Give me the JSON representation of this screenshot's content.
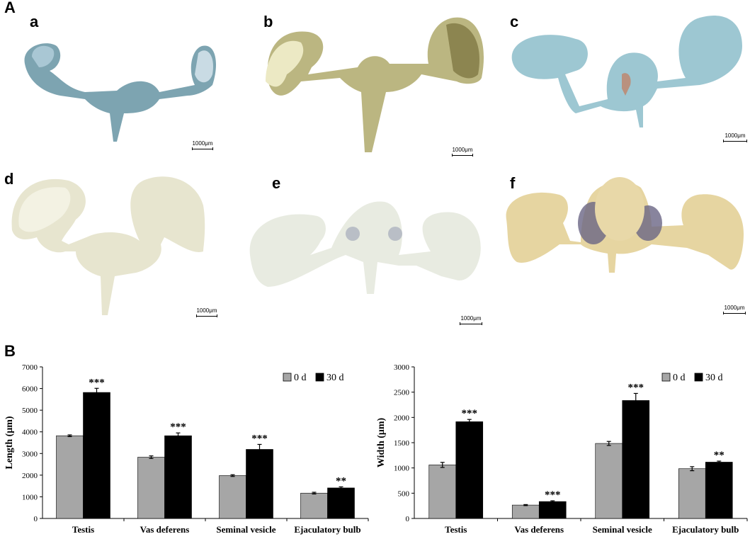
{
  "panel_labels": {
    "A": "A",
    "B": "B"
  },
  "photos": [
    {
      "letter": "a",
      "scale_label": "1000μm",
      "tint": "#7fa8b8"
    },
    {
      "letter": "b",
      "scale_label": "1000μm",
      "tint": "#c9c48e"
    },
    {
      "letter": "c",
      "scale_label": "1000μm",
      "tint": "#a9cfd8"
    },
    {
      "letter": "d",
      "scale_label": "1000μm",
      "tint": "#e8e6cf"
    },
    {
      "letter": "e",
      "scale_label": "1000μm",
      "tint": "#eceee4"
    },
    {
      "letter": "f",
      "scale_label": "1000μm",
      "tint": "#ead8a6"
    }
  ],
  "colors": {
    "day0": "#a6a6a6",
    "day30": "#000000"
  },
  "chart_data": [
    {
      "type": "bar",
      "categories": [
        "Testis",
        "Vas deferens",
        "Seminal vesicle",
        "Ejaculatory bulb"
      ],
      "series": [
        {
          "name": "0 d",
          "values": [
            3820,
            2830,
            1980,
            1170
          ],
          "errors": [
            40,
            60,
            40,
            40
          ]
        },
        {
          "name": "30 d",
          "values": [
            5820,
            3820,
            3190,
            1410
          ],
          "errors": [
            190,
            130,
            230,
            50
          ]
        }
      ],
      "significance": [
        "***",
        "***",
        "***",
        "**"
      ],
      "xlabel": "",
      "ylabel": "Length (μm)",
      "ylim": [
        0,
        7000
      ],
      "yticks": [
        "0",
        "1000",
        "2000",
        "3000",
        "4000",
        "5000",
        "6000",
        "7000"
      ],
      "legend": "top-right",
      "grid": false
    },
    {
      "type": "bar",
      "categories": [
        "Testis",
        "Vas deferens",
        "Seminal vesicle",
        "Ejaculatory bulb"
      ],
      "series": [
        {
          "name": "0 d",
          "values": [
            1060,
            265,
            1485,
            985
          ],
          "errors": [
            50,
            10,
            40,
            40
          ]
        },
        {
          "name": "30 d",
          "values": [
            1915,
            335,
            2335,
            1115
          ],
          "errors": [
            45,
            15,
            140,
            20
          ]
        }
      ],
      "significance": [
        "***",
        "***",
        "***",
        "**"
      ],
      "xlabel": "",
      "ylabel": "Width (μm)",
      "ylim": [
        0,
        3000
      ],
      "yticks": [
        "0",
        "500",
        "1000",
        "1500",
        "2000",
        "2500",
        "3000"
      ],
      "legend": "top-right",
      "grid": false
    }
  ]
}
